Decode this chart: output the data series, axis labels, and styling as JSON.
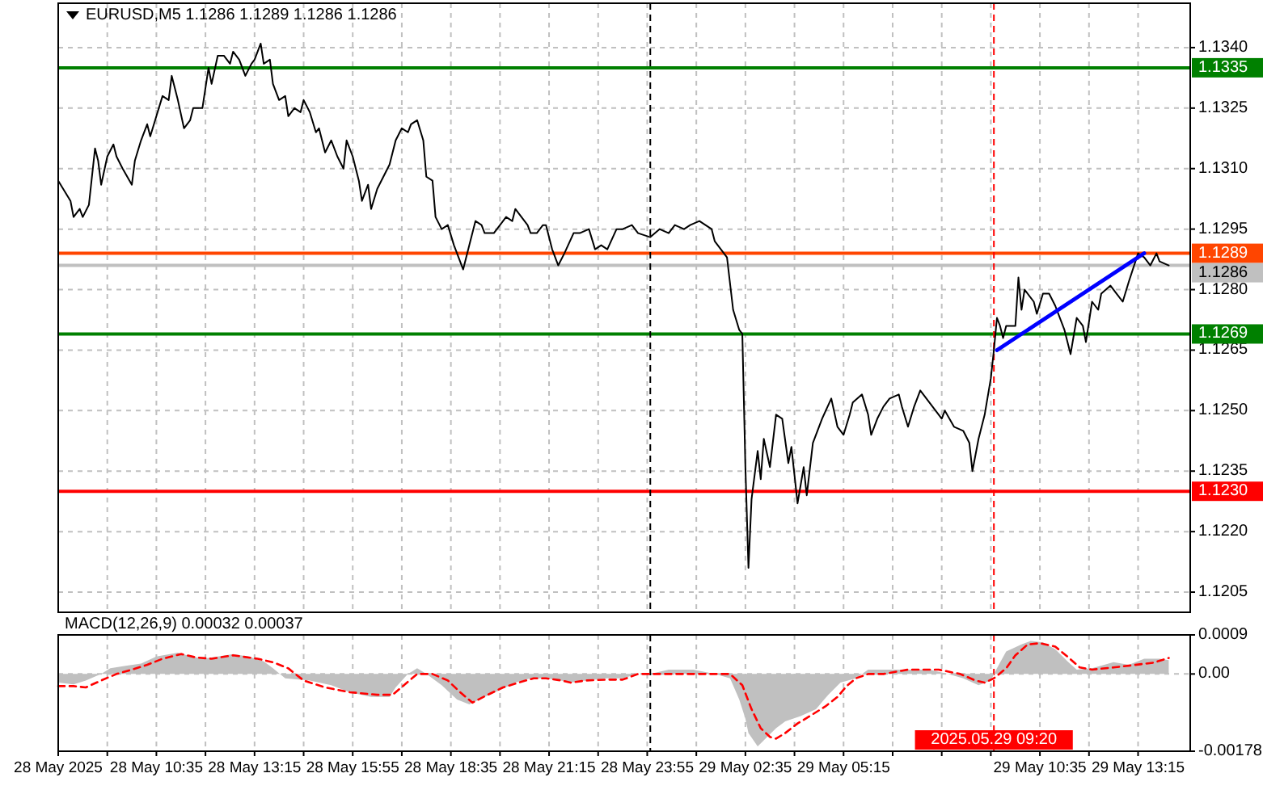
{
  "chart_data": [
    {
      "type": "line",
      "title": "EURUSD,M5 1.1286 1.1289 1.1286 1.1286",
      "series": [
        {
          "color": "#000000",
          "x": [
            "2025-05-28T07:55",
            "2025-05-28T08:15",
            "2025-05-28T08:20",
            "2025-05-28T08:30",
            "2025-05-28T08:35",
            "2025-05-28T08:45",
            "2025-05-28T08:55",
            "2025-05-28T09:00",
            "2025-05-28T09:05",
            "2025-05-28T09:15",
            "2025-05-28T09:25",
            "2025-05-28T09:30",
            "2025-05-28T09:40",
            "2025-05-28T09:55",
            "2025-05-28T10:00",
            "2025-05-28T10:10",
            "2025-05-28T10:20",
            "2025-05-28T10:25",
            "2025-05-28T10:35",
            "2025-05-28T10:45",
            "2025-05-28T10:55",
            "2025-05-28T11:00",
            "2025-05-28T11:10",
            "2025-05-28T11:20",
            "2025-05-28T11:30",
            "2025-05-28T11:35",
            "2025-05-28T11:50",
            "2025-05-28T12:00",
            "2025-05-28T12:05",
            "2025-05-28T12:15",
            "2025-05-28T12:25",
            "2025-05-28T12:35",
            "2025-05-28T12:40",
            "2025-05-28T12:50",
            "2025-05-28T13:00",
            "2025-05-28T13:10",
            "2025-05-28T13:15",
            "2025-05-28T13:25",
            "2025-05-28T13:30",
            "2025-05-28T13:40",
            "2025-05-28T13:45",
            "2025-05-28T13:55",
            "2025-05-28T14:05",
            "2025-05-28T14:10",
            "2025-05-28T14:20",
            "2025-05-28T14:30",
            "2025-05-28T14:35",
            "2025-05-28T14:45",
            "2025-05-28T14:55",
            "2025-05-28T15:00",
            "2025-05-28T15:10",
            "2025-05-28T15:20",
            "2025-05-28T15:30",
            "2025-05-28T15:40",
            "2025-05-28T15:45",
            "2025-05-28T15:55",
            "2025-05-28T16:05",
            "2025-05-28T16:10",
            "2025-05-28T16:20",
            "2025-05-28T16:25",
            "2025-05-28T16:35",
            "2025-05-28T16:55",
            "2025-05-28T17:05",
            "2025-05-28T17:15",
            "2025-05-28T17:25",
            "2025-05-28T17:30",
            "2025-05-28T17:40",
            "2025-05-28T17:50",
            "2025-05-28T17:55",
            "2025-05-28T18:05",
            "2025-05-28T18:10",
            "2025-05-28T18:20",
            "2025-05-28T18:30",
            "2025-05-28T18:40",
            "2025-05-28T18:45",
            "2025-05-28T18:55",
            "2025-05-28T19:05",
            "2025-05-28T19:15",
            "2025-05-28T19:25",
            "2025-05-28T19:30",
            "2025-05-28T19:45",
            "2025-05-28T19:55",
            "2025-05-28T20:05",
            "2025-05-28T20:15",
            "2025-05-28T20:20",
            "2025-05-28T20:30",
            "2025-05-28T20:40",
            "2025-05-28T20:45",
            "2025-05-28T20:55",
            "2025-05-28T21:05",
            "2025-05-28T21:10",
            "2025-05-28T21:20",
            "2025-05-28T21:30",
            "2025-05-28T21:40",
            "2025-05-28T21:55",
            "2025-05-28T22:05",
            "2025-05-28T22:20",
            "2025-05-28T22:30",
            "2025-05-28T22:40",
            "2025-05-28T22:50",
            "2025-05-28T23:05",
            "2025-05-28T23:15",
            "2025-05-28T23:30",
            "2025-05-28T23:40",
            "2025-05-29T00:00",
            "2025-05-29T00:15",
            "2025-05-29T00:30",
            "2025-05-29T00:40",
            "2025-05-29T00:55",
            "2025-05-29T01:05",
            "2025-05-29T01:20",
            "2025-05-29T01:30",
            "2025-05-29T01:40",
            "2025-05-29T01:45",
            "2025-05-29T02:05",
            "2025-05-29T02:15",
            "2025-05-29T02:25",
            "2025-05-29T02:30",
            "2025-05-29T02:35",
            "2025-05-29T02:40",
            "2025-05-29T02:45",
            "2025-05-29T02:55",
            "2025-05-29T03:00",
            "2025-05-29T03:05",
            "2025-05-29T03:15",
            "2025-05-29T03:25",
            "2025-05-29T03:35",
            "2025-05-29T03:45",
            "2025-05-29T03:50",
            "2025-05-29T04:00",
            "2025-05-29T04:10",
            "2025-05-29T04:15",
            "2025-05-29T04:25",
            "2025-05-29T04:40",
            "2025-05-29T04:55",
            "2025-05-29T05:05",
            "2025-05-29T05:15",
            "2025-05-29T05:25",
            "2025-05-29T05:30",
            "2025-05-29T05:45",
            "2025-05-29T05:55",
            "2025-05-29T06:00",
            "2025-05-29T06:10",
            "2025-05-29T06:20",
            "2025-05-29T06:30",
            "2025-05-29T06:45",
            "2025-05-29T06:50",
            "2025-05-29T07:00",
            "2025-05-29T07:10",
            "2025-05-29T07:20",
            "2025-05-29T07:30",
            "2025-05-29T07:45",
            "2025-05-29T07:55",
            "2025-05-29T08:00",
            "2025-05-29T08:15",
            "2025-05-29T08:30",
            "2025-05-29T08:40",
            "2025-05-29T08:45",
            "2025-05-29T08:55",
            "2025-05-29T09:05",
            "2025-05-29T09:15",
            "2025-05-29T09:20",
            "2025-05-29T09:25",
            "2025-05-29T09:30",
            "2025-05-29T09:35",
            "2025-05-29T09:40",
            "2025-05-29T09:55",
            "2025-05-29T10:00",
            "2025-05-29T10:05",
            "2025-05-29T10:10",
            "2025-05-29T10:25",
            "2025-05-29T10:30",
            "2025-05-29T10:40",
            "2025-05-29T10:50",
            "2025-05-29T11:00",
            "2025-05-29T11:15",
            "2025-05-29T11:25",
            "2025-05-29T11:35",
            "2025-05-29T11:45",
            "2025-05-29T11:50",
            "2025-05-29T12:00",
            "2025-05-29T12:10",
            "2025-05-29T12:15",
            "2025-05-29T12:30",
            "2025-05-29T12:40",
            "2025-05-29T12:50",
            "2025-05-29T13:00",
            "2025-05-29T13:15",
            "2025-05-29T13:25",
            "2025-05-29T13:35",
            "2025-05-29T13:45",
            "2025-05-29T13:50",
            "2025-05-29T14:05"
          ],
          "values": [
            1.1307,
            1.1302,
            1.1298,
            1.13,
            1.1298,
            1.1301,
            1.1315,
            1.1312,
            1.1306,
            1.1313,
            1.1316,
            1.1313,
            1.131,
            1.1306,
            1.1312,
            1.1317,
            1.1321,
            1.1318,
            1.1323,
            1.1328,
            1.1327,
            1.1333,
            1.1327,
            1.132,
            1.1322,
            1.1325,
            1.1325,
            1.1335,
            1.1331,
            1.1338,
            1.1338,
            1.1336,
            1.1339,
            1.1337,
            1.1333,
            1.1336,
            1.1337,
            1.1341,
            1.1336,
            1.1337,
            1.1331,
            1.1327,
            1.1328,
            1.1323,
            1.1325,
            1.1324,
            1.1327,
            1.1324,
            1.1319,
            1.132,
            1.1314,
            1.1317,
            1.1313,
            1.131,
            1.1317,
            1.1313,
            1.1307,
            1.1302,
            1.1306,
            1.13,
            1.1305,
            1.1311,
            1.1317,
            1.132,
            1.1319,
            1.1321,
            1.1322,
            1.1317,
            1.1308,
            1.1307,
            1.1298,
            1.1295,
            1.1296,
            1.1291,
            1.1289,
            1.1285,
            1.1291,
            1.1297,
            1.1296,
            1.1294,
            1.1294,
            1.1296,
            1.1298,
            1.1297,
            1.13,
            1.1298,
            1.1296,
            1.1294,
            1.1294,
            1.1296,
            1.1296,
            1.129,
            1.1286,
            1.1289,
            1.1294,
            1.1294,
            1.1295,
            1.129,
            1.1291,
            1.129,
            1.1295,
            1.1295,
            1.1296,
            1.1294,
            1.1293,
            1.1295,
            1.1294,
            1.1296,
            1.1295,
            1.1296,
            1.1297,
            1.1296,
            1.1295,
            1.1292,
            1.1288,
            1.1275,
            1.127,
            1.1269,
            1.1236,
            1.1211,
            1.1228,
            1.124,
            1.1233,
            1.1243,
            1.1236,
            1.1249,
            1.1248,
            1.1237,
            1.1241,
            1.1227,
            1.1236,
            1.1229,
            1.1242,
            1.1248,
            1.1253,
            1.1246,
            1.1244,
            1.1249,
            1.1252,
            1.1254,
            1.1249,
            1.1244,
            1.1248,
            1.1251,
            1.1253,
            1.1254,
            1.1251,
            1.1246,
            1.1251,
            1.1255,
            1.1253,
            1.125,
            1.1248,
            1.125,
            1.1246,
            1.1245,
            1.1242,
            1.1235,
            1.1243,
            1.1249,
            1.1258,
            1.1265,
            1.1273,
            1.1271,
            1.1268,
            1.1271,
            1.1271,
            1.1283,
            1.1275,
            1.128,
            1.1277,
            1.1274,
            1.1279,
            1.1279,
            1.1276,
            1.127,
            1.1264,
            1.1273,
            1.1271,
            1.1267,
            1.1277,
            1.1275,
            1.1279,
            1.1281,
            1.1279,
            1.1277,
            1.1282,
            1.1289,
            1.1288,
            1.1286,
            1.1289,
            1.1287,
            1.1286
          ]
        },
        {
          "color": "#0000ff",
          "x": [
            "2025-05-29T09:25",
            "2025-05-29T13:25"
          ],
          "values": [
            1.1265,
            1.1289
          ]
        }
      ],
      "xlim": [
        "2025-05-28T07:55",
        "2025-05-29T14:40"
      ],
      "xticks": [
        {
          "value": "2025-05-28T07:55",
          "label": null
        },
        {
          "value": "2025-05-28T09:15",
          "label": null
        },
        {
          "value": "2025-05-28T10:35",
          "label": null
        },
        {
          "value": "2025-05-28T11:55",
          "label": null
        },
        {
          "value": "2025-05-28T13:15",
          "label": null
        },
        {
          "value": "2025-05-28T14:35",
          "label": null
        },
        {
          "value": "2025-05-28T15:55",
          "label": null
        },
        {
          "value": "2025-05-28T17:15",
          "label": null
        },
        {
          "value": "2025-05-28T18:35",
          "label": null
        },
        {
          "value": "2025-05-28T19:55",
          "label": null
        },
        {
          "value": "2025-05-28T21:15",
          "label": null
        },
        {
          "value": "2025-05-28T22:35",
          "label": null
        },
        {
          "value": "2025-05-28T23:55",
          "label": null
        },
        {
          "value": "2025-05-29T01:15",
          "label": null
        },
        {
          "value": "2025-05-29T02:35",
          "label": null
        },
        {
          "value": "2025-05-29T03:55",
          "label": null
        },
        {
          "value": "2025-05-29T05:15",
          "label": null
        },
        {
          "value": "2025-05-29T06:35",
          "label": null
        },
        {
          "value": "2025-05-29T07:55",
          "label": null
        },
        {
          "value": "2025-05-29T09:15",
          "label": null
        },
        {
          "value": "2025-05-29T10:35",
          "label": null
        },
        {
          "value": "2025-05-29T11:55",
          "label": null
        },
        {
          "value": "2025-05-29T13:15",
          "label": null
        }
      ],
      "ylim": [
        1.12,
        1.1351
      ],
      "yticks": [
        {
          "value": 1.134,
          "label": "1.1340"
        },
        1.1325,
        {
          "value": 1.131,
          "label": "1.1310"
        },
        1.1295,
        {
          "value": 1.128,
          "label": "1.1280"
        },
        1.1265,
        {
          "value": 1.125,
          "label": "1.1250"
        },
        1.1235,
        {
          "value": 1.122,
          "label": "1.1220"
        },
        1.1205
      ],
      "grid": true,
      "tick_labels": "y",
      "ref_lines": [
        {
          "axis": "y",
          "value": 1.1335,
          "label": "1.1335",
          "color": "#008000"
        },
        {
          "axis": "y",
          "value": 1.1289,
          "label": "1.1289",
          "color": "#ff4500"
        },
        {
          "axis": "y",
          "value": 1.1286,
          "label": "1.1286",
          "color": "#c0c0c0"
        },
        {
          "axis": "y",
          "value": 1.1269,
          "label": "1.1269",
          "color": "#008000"
        },
        {
          "axis": "y",
          "value": 1.123,
          "label": "1.1230",
          "color": "#ff0000"
        },
        {
          "axis": "x",
          "value": "2025-05-29T00:00",
          "color": "#000000",
          "line_style": "dashed"
        },
        {
          "axis": "x",
          "value": "2025-05-29T09:20",
          "color": "#ff0000",
          "line_style": "dashed"
        }
      ]
    },
    {
      "type": "area",
      "title": "MACD(12,26,9) 0.00032 0.00037",
      "series": [
        {
          "color": "#c0c0c0",
          "x": [
            "2025-05-28T07:55",
            "2025-05-28T08:20",
            "2025-05-28T08:40",
            "2025-05-28T09:05",
            "2025-05-28T09:20",
            "2025-05-28T09:45",
            "2025-05-28T10:10",
            "2025-05-28T10:35",
            "2025-05-28T11:10",
            "2025-05-28T11:25",
            "2025-05-28T11:50",
            "2025-05-28T12:15",
            "2025-05-28T12:40",
            "2025-05-28T13:05",
            "2025-05-28T13:30",
            "2025-05-28T13:45",
            "2025-05-28T14:05",
            "2025-05-28T14:45",
            "2025-05-28T15:20",
            "2025-05-28T15:50",
            "2025-05-28T16:25",
            "2025-05-28T16:55",
            "2025-05-28T17:05",
            "2025-05-28T17:25",
            "2025-05-28T17:40",
            "2025-05-28T17:55",
            "2025-05-28T18:20",
            "2025-05-28T18:45",
            "2025-05-28T19:05",
            "2025-05-28T19:30",
            "2025-05-28T19:55",
            "2025-05-28T20:20",
            "2025-05-28T20:45",
            "2025-05-28T21:10",
            "2025-05-28T21:35",
            "2025-05-28T21:50",
            "2025-05-28T22:15",
            "2025-05-28T22:50",
            "2025-05-28T23:15",
            "2025-05-28T23:40",
            "2025-05-29T00:00",
            "2025-05-29T00:30",
            "2025-05-29T01:10",
            "2025-05-29T01:45",
            "2025-05-29T02:10",
            "2025-05-29T02:25",
            "2025-05-29T02:35",
            "2025-05-29T02:40",
            "2025-05-29T02:55",
            "2025-05-29T03:05",
            "2025-05-29T03:25",
            "2025-05-29T03:40",
            "2025-05-29T04:05",
            "2025-05-29T04:30",
            "2025-05-29T04:50",
            "2025-05-29T05:10",
            "2025-05-29T05:35",
            "2025-05-29T05:55",
            "2025-05-29T06:20",
            "2025-05-29T06:50",
            "2025-05-29T07:35",
            "2025-05-29T08:05",
            "2025-05-29T08:30",
            "2025-05-29T08:55",
            "2025-05-29T09:15",
            "2025-05-29T09:25",
            "2025-05-29T09:40",
            "2025-05-29T10:05",
            "2025-05-29T10:20",
            "2025-05-29T10:40",
            "2025-05-29T11:00",
            "2025-05-29T11:20",
            "2025-05-29T11:35",
            "2025-05-29T12:00",
            "2025-05-29T12:35",
            "2025-05-29T13:00",
            "2025-05-29T13:25",
            "2025-05-29T13:50",
            "2025-05-29T14:05"
          ],
          "values": [
            -0.0002,
            -0.00024,
            -0.00015,
            0,
            0.00013,
            0.00019,
            0.00024,
            0.0004,
            0.00049,
            0.00043,
            0.00035,
            0.0004,
            0.00046,
            0.0004,
            0.00029,
            0.00013,
            -0.0001,
            -0.00015,
            -0.00026,
            -0.00042,
            -0.00053,
            -0.00053,
            -0.00031,
            0,
            0.00013,
            0,
            -0.00026,
            -0.00059,
            -0.0007,
            -0.00053,
            -0.00037,
            -0.0002,
            -0.0001,
            -0.0001,
            -0.00015,
            -0.0002,
            -0.00015,
            -0.0001,
            -0.0001,
            0,
            0,
            0.0001,
            0.0001,
            0,
            -0.0001,
            -0.00059,
            -0.00103,
            -0.00136,
            -0.00167,
            -0.00153,
            -0.00125,
            -0.00109,
            -0.00097,
            -0.00081,
            -0.00048,
            -0.0002,
            -0.0001,
            0.0001,
            0.0001,
            0.0001,
            0.0001,
            0,
            -0.0001,
            -0.00026,
            -0.00015,
            0.00013,
            0.00052,
            0.00068,
            0.00076,
            0.00073,
            0.00057,
            0.00029,
            0.0001,
            0.00013,
            0.00027,
            0.00021,
            0.00035,
            0.00035,
            0.00032
          ]
        },
        {
          "type": "line",
          "color": "#ff0000",
          "line_style": "dashed",
          "x": [
            "2025-05-28T07:55",
            "2025-05-28T08:20",
            "2025-05-28T08:40",
            "2025-05-28T09:05",
            "2025-05-28T09:30",
            "2025-05-28T09:55",
            "2025-05-28T10:20",
            "2025-05-28T10:45",
            "2025-05-28T11:15",
            "2025-05-28T11:40",
            "2025-05-28T12:05",
            "2025-05-28T12:40",
            "2025-05-28T13:20",
            "2025-05-28T13:45",
            "2025-05-28T14:10",
            "2025-05-28T14:35",
            "2025-05-28T15:10",
            "2025-05-28T15:50",
            "2025-05-28T16:35",
            "2025-05-28T17:00",
            "2025-05-28T17:20",
            "2025-05-28T17:40",
            "2025-05-28T18:05",
            "2025-05-28T18:30",
            "2025-05-28T18:50",
            "2025-05-28T19:10",
            "2025-05-28T19:35",
            "2025-05-28T20:00",
            "2025-05-28T20:25",
            "2025-05-28T20:50",
            "2025-05-28T21:10",
            "2025-05-28T21:35",
            "2025-05-28T21:50",
            "2025-05-28T22:15",
            "2025-05-28T22:50",
            "2025-05-28T23:15",
            "2025-05-28T23:40",
            "2025-05-29T00:00",
            "2025-05-29T00:30",
            "2025-05-29T01:10",
            "2025-05-29T01:45",
            "2025-05-29T02:10",
            "2025-05-29T02:30",
            "2025-05-29T02:45",
            "2025-05-29T03:00",
            "2025-05-29T03:15",
            "2025-05-29T03:25",
            "2025-05-29T03:40",
            "2025-05-29T04:00",
            "2025-05-29T04:20",
            "2025-05-29T04:45",
            "2025-05-29T05:05",
            "2025-05-29T05:20",
            "2025-05-29T05:35",
            "2025-05-29T05:55",
            "2025-05-29T06:20",
            "2025-05-29T07:00",
            "2025-05-29T07:50",
            "2025-05-29T08:25",
            "2025-05-29T08:50",
            "2025-05-29T09:05",
            "2025-05-29T09:20",
            "2025-05-29T09:40",
            "2025-05-29T09:55",
            "2025-05-29T10:15",
            "2025-05-29T10:35",
            "2025-05-29T11:00",
            "2025-05-29T11:20",
            "2025-05-29T11:40",
            "2025-05-29T12:00",
            "2025-05-29T12:35",
            "2025-05-29T13:05",
            "2025-05-29T13:40",
            "2025-05-29T14:05"
          ],
          "values": [
            -0.00028,
            -0.00028,
            -0.00031,
            -0.00015,
            0,
            0.0001,
            0.00021,
            0.00035,
            0.00046,
            0.00038,
            0.00035,
            0.00043,
            0.00035,
            0.00027,
            0.00013,
            -0.00015,
            -0.00031,
            -0.00042,
            -0.00048,
            -0.00048,
            -0.00024,
            0,
            0,
            -0.00015,
            -0.00042,
            -0.00066,
            -0.00048,
            -0.00031,
            -0.0002,
            -0.0001,
            -0.0001,
            -0.00015,
            -0.0002,
            -0.00015,
            -0.00013,
            -0.00013,
            0,
            0,
            0,
            0,
            0,
            0,
            -0.00026,
            -0.00081,
            -0.00125,
            -0.00145,
            -0.00149,
            -0.00136,
            -0.00114,
            -0.00097,
            -0.00075,
            -0.00053,
            -0.00028,
            -0.0001,
            0,
            0,
            0.0001,
            0.0001,
            0,
            -0.00015,
            -0.0002,
            -0.0001,
            0.00013,
            0.00043,
            0.00068,
            0.00071,
            0.00063,
            0.0004,
            0.00015,
            0.0001,
            0.00015,
            0.0002,
            0.00026,
            0.00037
          ]
        }
      ],
      "xlim": [
        "2025-05-28T07:55",
        "2025-05-29T14:40"
      ],
      "xticks": [
        {
          "value": "2025-05-28T07:55",
          "label": "28 May 2025"
        },
        {
          "value": "2025-05-28T09:15",
          "label": null
        },
        {
          "value": "2025-05-28T10:35",
          "label": "28 May 10:35"
        },
        {
          "value": "2025-05-28T11:55",
          "label": null
        },
        {
          "value": "2025-05-28T13:15",
          "label": "28 May 13:15"
        },
        {
          "value": "2025-05-28T14:35",
          "label": null
        },
        {
          "value": "2025-05-28T15:55",
          "label": "28 May 15:55"
        },
        {
          "value": "2025-05-28T17:15",
          "label": null
        },
        {
          "value": "2025-05-28T18:35",
          "label": "28 May 18:35"
        },
        {
          "value": "2025-05-28T19:55",
          "label": null
        },
        {
          "value": "2025-05-28T21:15",
          "label": "28 May 21:15"
        },
        {
          "value": "2025-05-28T22:35",
          "label": null
        },
        {
          "value": "2025-05-28T23:55",
          "label": "28 May 23:55"
        },
        {
          "value": "2025-05-29T01:15",
          "label": null
        },
        {
          "value": "2025-05-29T02:35",
          "label": "29 May 02:35"
        },
        {
          "value": "2025-05-29T03:55",
          "label": null
        },
        {
          "value": "2025-05-29T05:15",
          "label": "29 May 05:15"
        },
        {
          "value": "2025-05-29T06:35",
          "label": null
        },
        {
          "value": "2025-05-29T07:55",
          "label": null
        },
        {
          "value": "2025-05-29T09:15",
          "label": null
        },
        {
          "value": "2025-05-29T10:35",
          "label": "29 May 10:35"
        },
        {
          "value": "2025-05-29T11:55",
          "label": null
        },
        {
          "value": "2025-05-29T13:15",
          "label": "29 May 13:15"
        }
      ],
      "ylim": [
        -0.00178,
        0.0009
      ],
      "yticks": [
        0.0009,
        {
          "value": 0,
          "label": "0.00"
        },
        -0.00178
      ],
      "grid": true,
      "ref_lines": [
        {
          "axis": "x",
          "value": "2025-05-29T00:00",
          "color": "#000000",
          "line_style": "dashed"
        },
        {
          "axis": "x",
          "value": "2025-05-29T09:20",
          "label": "2025.05.29 09:20",
          "color": "#ff0000",
          "line_style": "dashed"
        }
      ]
    }
  ]
}
